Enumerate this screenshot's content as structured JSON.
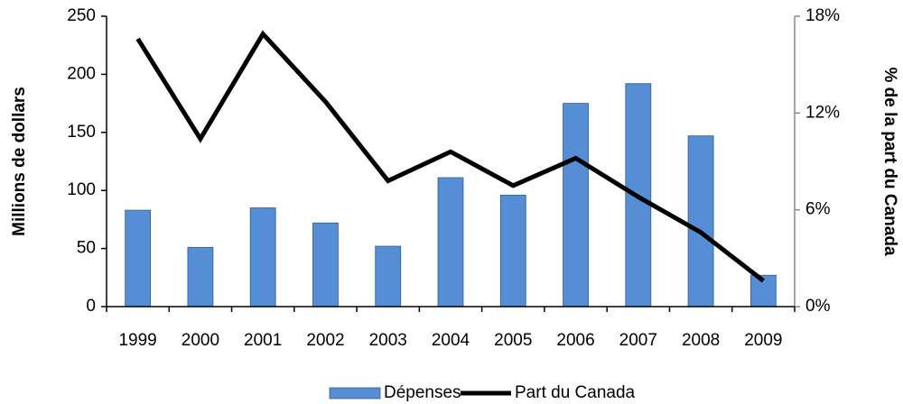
{
  "chart_data": {
    "type": "bar-line",
    "categories": [
      "1999",
      "2000",
      "2001",
      "2002",
      "2003",
      "2004",
      "2005",
      "2006",
      "2007",
      "2008",
      "2009"
    ],
    "series": [
      {
        "name": "Dépenses",
        "type": "bar",
        "color": "#558ed5",
        "values": [
          83,
          51,
          85,
          72,
          52,
          111,
          96,
          175,
          192,
          147,
          27
        ]
      },
      {
        "name": "Part du Canada",
        "type": "line",
        "color": "#000000",
        "axis": "y2",
        "values": [
          16.6,
          10.4,
          16.9,
          12.7,
          7.8,
          9.6,
          7.5,
          9.2,
          6.8,
          4.6,
          1.6
        ]
      }
    ],
    "ylabel": "Millions de dollars",
    "y2label": "% de la part du Canada",
    "ylim": [
      0,
      250
    ],
    "yticks": [
      0,
      50,
      100,
      150,
      200,
      250
    ],
    "y2lim": [
      0,
      18
    ],
    "y2ticks": [
      {
        "value": 0,
        "label": "0%"
      },
      {
        "value": 6,
        "label": "6%"
      },
      {
        "value": 12,
        "label": "12%"
      },
      {
        "value": 18,
        "label": "18%"
      }
    ],
    "legend": "bottom"
  }
}
